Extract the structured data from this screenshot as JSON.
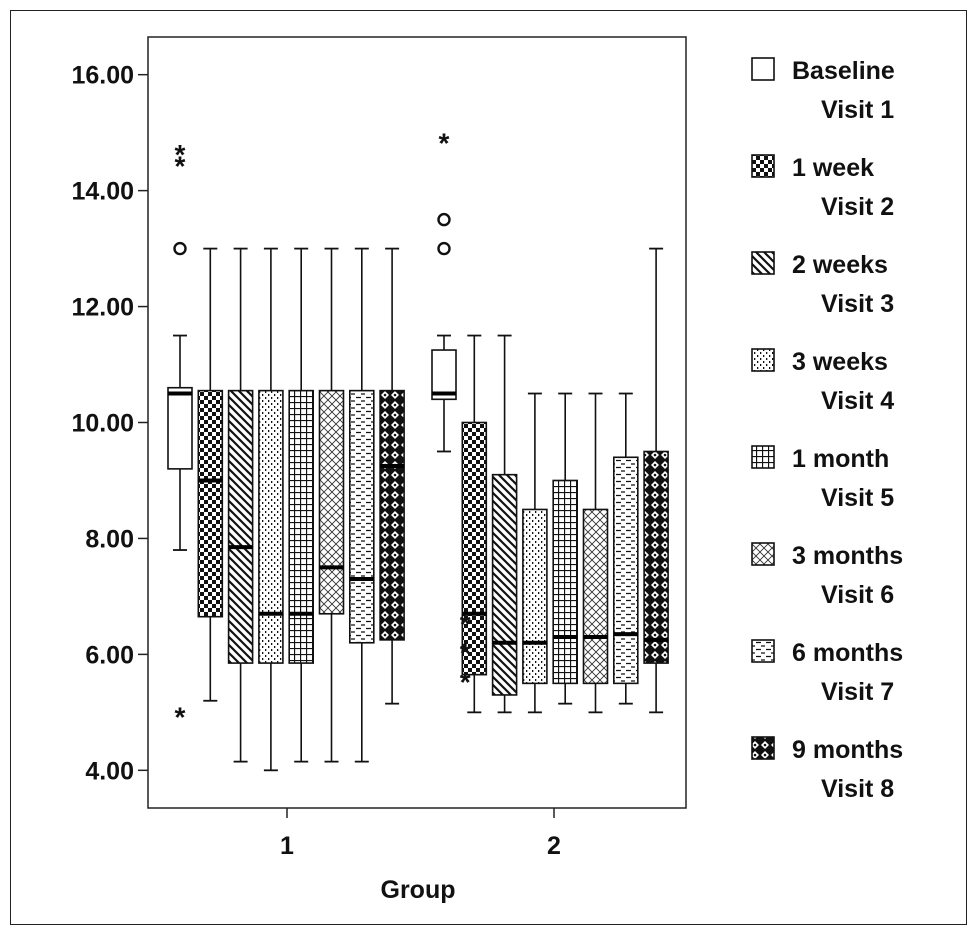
{
  "chart_data": {
    "type": "boxplot",
    "xlabel": "Group",
    "ylabel": "",
    "ylim": [
      3.35,
      16.65
    ],
    "y_ticks": [
      "4.00",
      "6.00",
      "8.00",
      "10.00",
      "12.00",
      "14.00",
      "16.00"
    ],
    "y_tick_values": [
      4,
      6,
      8,
      10,
      12,
      14,
      16
    ],
    "categories": [
      "1",
      "2"
    ],
    "series": [
      {
        "name": "Baseline",
        "name2": "Visit 1",
        "pattern": "plain"
      },
      {
        "name": "1 week",
        "name2": "Visit 2",
        "pattern": "checker"
      },
      {
        "name": "2 weeks",
        "name2": "Visit 3",
        "pattern": "diag"
      },
      {
        "name": "3 weeks",
        "name2": "Visit 4",
        "pattern": "dots"
      },
      {
        "name": "1 month",
        "name2": "Visit 5",
        "pattern": "grid"
      },
      {
        "name": "3 months",
        "name2": "Visit 6",
        "pattern": "cross"
      },
      {
        "name": "6 months",
        "name2": "Visit 7",
        "pattern": "dashes"
      },
      {
        "name": "9 months",
        "name2": "Visit 8",
        "pattern": "diamonds"
      }
    ],
    "boxes": [
      [
        {
          "min": 7.8,
          "q1": 9.2,
          "median": 10.5,
          "q3": 10.6,
          "max": 11.5,
          "outliers": [
            {
              "v": 13.0,
              "m": "o"
            },
            {
              "v": 14.7,
              "m": "*"
            },
            {
              "v": 14.5,
              "m": "*"
            },
            {
              "v": 5.0,
              "m": "*"
            }
          ]
        },
        {
          "min": 5.2,
          "q1": 6.65,
          "median": 9.0,
          "q3": 10.55,
          "max": 13.0,
          "outliers": []
        },
        {
          "min": 4.15,
          "q1": 5.85,
          "median": 7.85,
          "q3": 10.55,
          "max": 13.0,
          "outliers": []
        },
        {
          "min": 4.0,
          "q1": 5.85,
          "median": 6.7,
          "q3": 10.55,
          "max": 13.0,
          "outliers": []
        },
        {
          "min": 4.15,
          "q1": 5.85,
          "median": 6.7,
          "q3": 10.55,
          "max": 13.0,
          "outliers": []
        },
        {
          "min": 4.15,
          "q1": 6.7,
          "median": 7.5,
          "q3": 10.55,
          "max": 13.0,
          "outliers": []
        },
        {
          "min": 4.15,
          "q1": 6.2,
          "median": 7.3,
          "q3": 10.55,
          "max": 13.0,
          "outliers": []
        },
        {
          "min": 5.15,
          "q1": 6.25,
          "median": 9.25,
          "q3": 10.55,
          "max": 13.0,
          "outliers": []
        }
      ],
      [
        {
          "min": 9.5,
          "q1": 10.4,
          "median": 10.5,
          "q3": 11.25,
          "max": 11.5,
          "outliers": [
            {
              "v": 13.0,
              "m": "o"
            },
            {
              "v": 13.5,
              "m": "o"
            },
            {
              "v": 14.9,
              "m": "*"
            }
          ]
        },
        {
          "min": 5.0,
          "q1": 5.65,
          "median": 6.7,
          "q3": 10.0,
          "max": 11.5,
          "outliers": []
        },
        {
          "min": 5.0,
          "q1": 5.3,
          "median": 6.2,
          "q3": 9.1,
          "max": 11.5,
          "outliers": []
        },
        {
          "min": 5.0,
          "q1": 5.5,
          "median": 6.2,
          "q3": 8.5,
          "max": 10.5,
          "outliers": []
        },
        {
          "min": 5.15,
          "q1": 5.5,
          "median": 6.3,
          "q3": 9.0,
          "max": 10.5,
          "outliers": []
        },
        {
          "min": 5.0,
          "q1": 5.5,
          "median": 6.3,
          "q3": 8.5,
          "max": 10.5,
          "outliers": []
        },
        {
          "min": 5.15,
          "q1": 5.5,
          "median": 6.35,
          "q3": 9.4,
          "max": 10.5,
          "outliers": []
        },
        {
          "min": 5.0,
          "q1": 5.85,
          "median": 6.25,
          "q3": 9.5,
          "max": 13.0,
          "outliers": []
        }
      ]
    ],
    "extra_outliers": [
      {
        "group": 1,
        "v": 6.6,
        "m": "*"
      },
      {
        "group": 1,
        "v": 6.1,
        "m": "*"
      },
      {
        "group": 1,
        "v": 5.6,
        "m": "*"
      }
    ],
    "grid": false,
    "legend_position": "right"
  }
}
